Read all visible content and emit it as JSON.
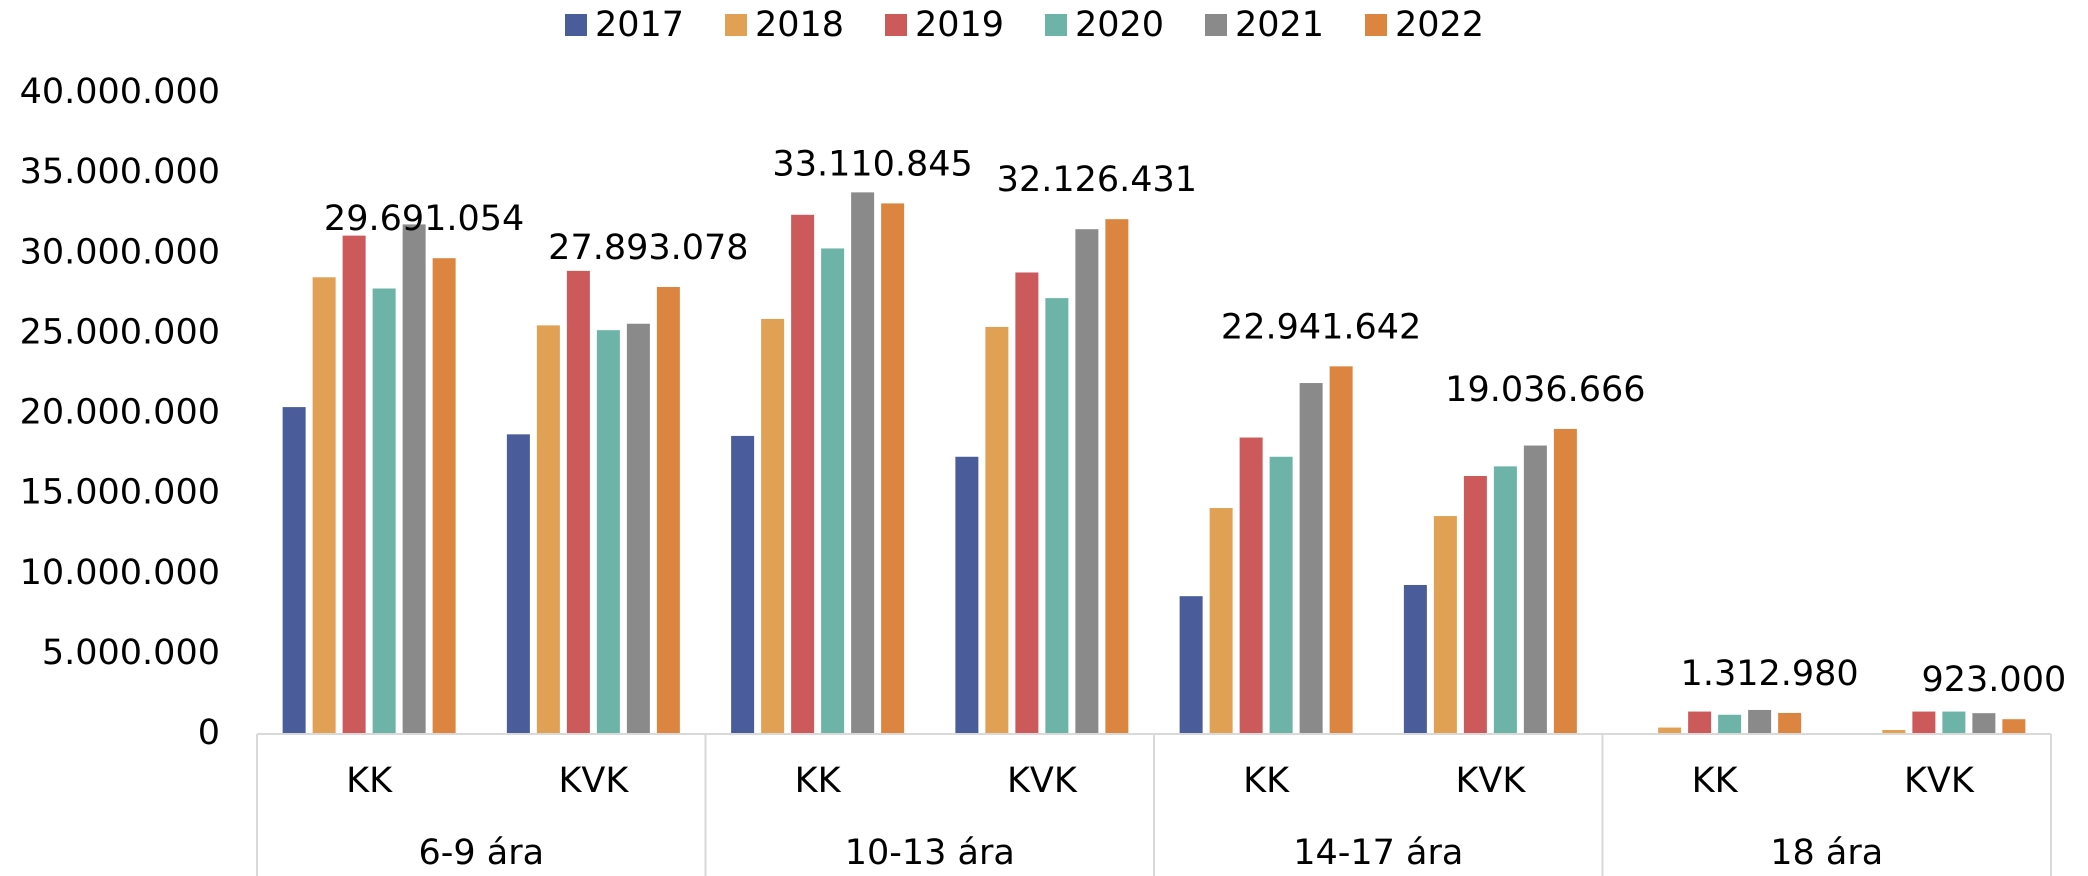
{
  "chart_data": {
    "type": "bar",
    "groups": [
      "6-9 ára",
      "10-13 ára",
      "14-17 ára",
      "18 ára"
    ],
    "categories": [
      "KK",
      "KVK",
      "KK",
      "KVK",
      "KK",
      "KVK",
      "KK",
      "KVK"
    ],
    "series": [
      {
        "name": "2017",
        "color": "#4a5c9a",
        "values": [
          20400000,
          18700000,
          18600000,
          17300000,
          8600000,
          9300000,
          0,
          0
        ]
      },
      {
        "name": "2018",
        "color": "#e0a155",
        "values": [
          28500000,
          25500000,
          25900000,
          25400000,
          14100000,
          13600000,
          400000,
          250000
        ]
      },
      {
        "name": "2019",
        "color": "#cc5a5a",
        "values": [
          31100000,
          28900000,
          32400000,
          28800000,
          18500000,
          16100000,
          1400000,
          1400000
        ]
      },
      {
        "name": "2020",
        "color": "#6db3a8",
        "values": [
          27800000,
          25200000,
          30300000,
          27200000,
          17300000,
          16700000,
          1200000,
          1400000
        ]
      },
      {
        "name": "2021",
        "color": "#8a8a8a",
        "values": [
          31800000,
          25600000,
          33800000,
          31500000,
          21900000,
          18000000,
          1500000,
          1300000
        ]
      },
      {
        "name": "2022",
        "color": "#dc8540",
        "values": [
          29691054,
          27893078,
          33110845,
          32126431,
          22941642,
          19036666,
          1312980,
          923000
        ],
        "value_labels": [
          "29.691.054",
          "27.893.078",
          "33.110.845",
          "32.126.431",
          "22.941.642",
          "19.036.666",
          "1.312.980",
          "923.000"
        ]
      }
    ],
    "ylim": [
      0,
      40000000
    ],
    "yticks": [
      0,
      {
        "value": 5000000,
        "label": "5.000.000"
      },
      {
        "value": 10000000,
        "label": "10.000.000"
      },
      {
        "value": 15000000,
        "label": "15.000.000"
      },
      {
        "value": 20000000,
        "label": "20.000.000"
      },
      {
        "value": 25000000,
        "label": "25.000.000"
      },
      {
        "value": 30000000,
        "label": "30.000.000"
      },
      {
        "value": 35000000,
        "label": "35.000.000"
      },
      {
        "value": 40000000,
        "label": "40.000.000"
      }
    ],
    "legend": "top"
  }
}
